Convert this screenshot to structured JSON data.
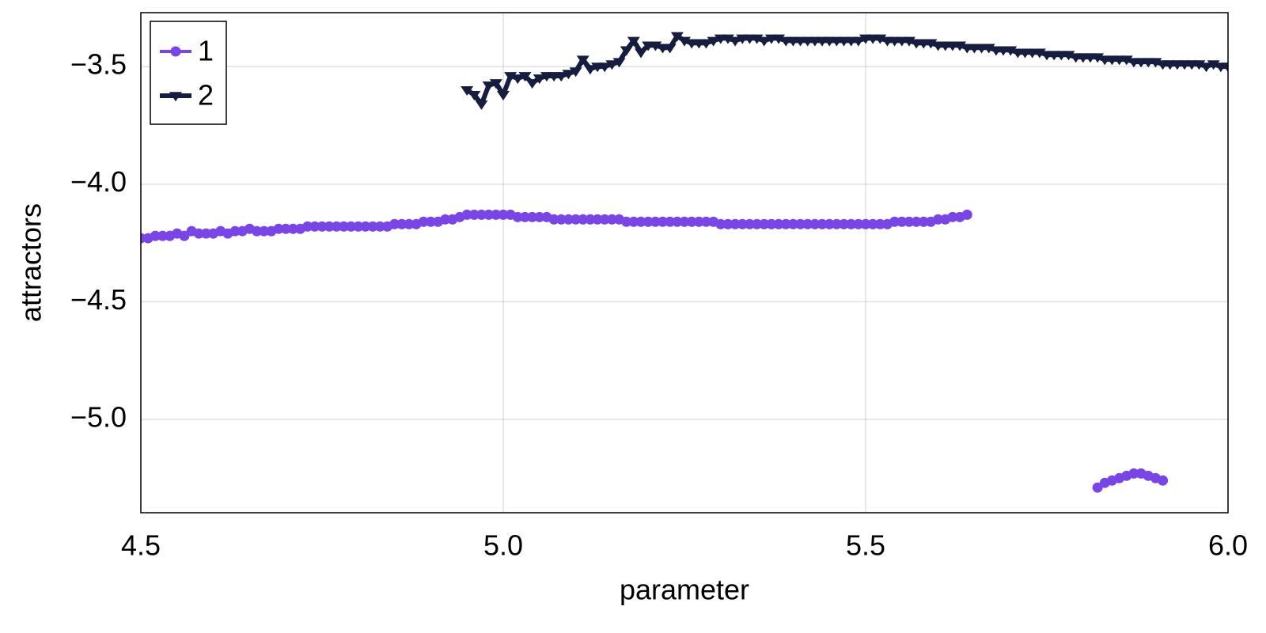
{
  "chart_data": {
    "type": "line",
    "xlabel": "parameter",
    "ylabel": "attractors",
    "x": [
      4.5,
      4.51,
      4.52,
      4.53,
      4.54,
      4.55,
      4.56,
      4.57,
      4.58,
      4.59,
      4.6,
      4.61,
      4.62,
      4.63,
      4.64,
      4.65,
      4.66,
      4.67,
      4.68,
      4.69,
      4.7,
      4.71,
      4.72,
      4.73,
      4.74,
      4.75,
      4.76,
      4.77,
      4.78,
      4.79,
      4.8,
      4.81,
      4.82,
      4.83,
      4.84,
      4.85,
      4.86,
      4.87,
      4.88,
      4.89,
      4.9,
      4.91,
      4.92,
      4.93,
      4.94,
      4.95,
      4.96,
      4.97,
      4.98,
      4.99,
      5.0,
      5.01,
      5.02,
      5.03,
      5.04,
      5.05,
      5.06,
      5.07,
      5.08,
      5.09,
      5.1,
      5.11,
      5.12,
      5.13,
      5.14,
      5.15,
      5.16,
      5.17,
      5.18,
      5.19,
      5.2,
      5.21,
      5.22,
      5.23,
      5.24,
      5.25,
      5.26,
      5.27,
      5.28,
      5.29,
      5.3,
      5.31,
      5.32,
      5.33,
      5.34,
      5.35,
      5.36,
      5.37,
      5.38,
      5.39,
      5.4,
      5.41,
      5.42,
      5.43,
      5.44,
      5.45,
      5.46,
      5.47,
      5.48,
      5.49,
      5.5,
      5.51,
      5.52,
      5.53,
      5.54,
      5.55,
      5.56,
      5.57,
      5.58,
      5.59,
      5.6,
      5.61,
      5.62,
      5.63,
      5.64,
      5.65,
      5.66,
      5.67,
      5.68,
      5.69,
      5.7,
      5.71,
      5.72,
      5.73,
      5.74,
      5.75,
      5.76,
      5.77,
      5.78,
      5.79,
      5.8,
      5.81,
      5.82,
      5.83,
      5.84,
      5.85,
      5.86,
      5.87,
      5.88,
      5.89,
      5.9,
      5.91,
      5.92,
      5.93,
      5.94,
      5.95,
      5.96,
      5.97,
      5.98,
      5.99,
      6.0
    ],
    "series": [
      {
        "name": "1",
        "color": "#7a45e5",
        "marker": "circle",
        "values": [
          -4.23,
          -4.23,
          -4.22,
          -4.22,
          -4.22,
          -4.21,
          -4.22,
          -4.2,
          -4.21,
          -4.21,
          -4.21,
          -4.2,
          -4.21,
          -4.2,
          -4.2,
          -4.19,
          -4.2,
          -4.2,
          -4.2,
          -4.19,
          -4.19,
          -4.19,
          -4.19,
          -4.18,
          -4.18,
          -4.18,
          -4.18,
          -4.18,
          -4.18,
          -4.18,
          -4.18,
          -4.18,
          -4.18,
          -4.18,
          -4.18,
          -4.17,
          -4.17,
          -4.17,
          -4.17,
          -4.16,
          -4.16,
          -4.16,
          -4.15,
          -4.15,
          -4.14,
          -4.13,
          -4.13,
          -4.13,
          -4.13,
          -4.13,
          -4.13,
          -4.13,
          -4.14,
          -4.14,
          -4.14,
          -4.14,
          -4.14,
          -4.15,
          -4.15,
          -4.15,
          -4.15,
          -4.15,
          -4.15,
          -4.15,
          -4.15,
          -4.15,
          -4.15,
          -4.16,
          -4.16,
          -4.16,
          -4.16,
          -4.16,
          -4.16,
          -4.16,
          -4.16,
          -4.16,
          -4.16,
          -4.16,
          -4.16,
          -4.16,
          -4.17,
          -4.17,
          -4.17,
          -4.17,
          -4.17,
          -4.17,
          -4.17,
          -4.17,
          -4.17,
          -4.17,
          -4.17,
          -4.17,
          -4.17,
          -4.17,
          -4.17,
          -4.17,
          -4.17,
          -4.17,
          -4.17,
          -4.17,
          -4.17,
          -4.17,
          -4.17,
          -4.17,
          -4.16,
          -4.16,
          -4.16,
          -4.16,
          -4.16,
          -4.16,
          -4.15,
          -4.15,
          -4.14,
          -4.14,
          -4.13,
          null,
          null,
          null,
          null,
          null,
          null,
          null,
          null,
          null,
          null,
          null,
          null,
          null,
          null,
          null,
          null,
          null,
          -5.29,
          -5.27,
          -5.26,
          -5.25,
          -5.24,
          -5.23,
          -5.23,
          -5.24,
          -5.25,
          -5.26,
          null,
          null,
          null,
          null,
          null,
          null,
          null,
          null,
          null
        ]
      },
      {
        "name": "2",
        "color": "#161d3f",
        "marker": "triangle-down",
        "values": [
          null,
          null,
          null,
          null,
          null,
          null,
          null,
          null,
          null,
          null,
          null,
          null,
          null,
          null,
          null,
          null,
          null,
          null,
          null,
          null,
          null,
          null,
          null,
          null,
          null,
          null,
          null,
          null,
          null,
          null,
          null,
          null,
          null,
          null,
          null,
          null,
          null,
          null,
          null,
          null,
          null,
          null,
          null,
          null,
          null,
          -3.6,
          -3.62,
          -3.66,
          -3.58,
          -3.57,
          -3.62,
          -3.54,
          -3.55,
          -3.54,
          -3.57,
          -3.55,
          -3.54,
          -3.54,
          -3.54,
          -3.53,
          -3.52,
          -3.47,
          -3.51,
          -3.5,
          -3.5,
          -3.49,
          -3.48,
          -3.43,
          -3.39,
          -3.44,
          -3.41,
          -3.41,
          -3.42,
          -3.42,
          -3.37,
          -3.39,
          -3.4,
          -3.4,
          -3.4,
          -3.39,
          -3.38,
          -3.38,
          -3.39,
          -3.38,
          -3.38,
          -3.38,
          -3.39,
          -3.38,
          -3.38,
          -3.39,
          -3.39,
          -3.39,
          -3.39,
          -3.39,
          -3.39,
          -3.39,
          -3.39,
          -3.39,
          -3.39,
          -3.39,
          -3.38,
          -3.38,
          -3.38,
          -3.39,
          -3.39,
          -3.39,
          -3.39,
          -3.4,
          -3.4,
          -3.4,
          -3.41,
          -3.41,
          -3.41,
          -3.41,
          -3.42,
          -3.42,
          -3.42,
          -3.42,
          -3.43,
          -3.43,
          -3.43,
          -3.44,
          -3.44,
          -3.44,
          -3.44,
          -3.45,
          -3.45,
          -3.45,
          -3.45,
          -3.46,
          -3.46,
          -3.46,
          -3.46,
          -3.47,
          -3.47,
          -3.47,
          -3.47,
          -3.48,
          -3.48,
          -3.48,
          -3.48,
          -3.49,
          -3.49,
          -3.49,
          -3.49,
          -3.49,
          -3.49,
          -3.5,
          -3.49,
          -3.5,
          -3.5
        ]
      }
    ],
    "xlim": [
      4.5,
      6.0
    ],
    "ylim": [
      -5.397,
      -3.271
    ],
    "xticks": [
      4.5,
      {
        "value": 5,
        "label": "5.0"
      },
      5.5,
      {
        "value": 6,
        "label": "6.0"
      }
    ],
    "yticks": [
      {
        "value": -3.5,
        "label": "−3.5"
      },
      {
        "value": -4,
        "label": "−4.0"
      },
      {
        "value": -4.5,
        "label": "−4.5"
      },
      {
        "value": -5,
        "label": "−5.0"
      }
    ],
    "grid": true,
    "legend": "upper-left"
  }
}
